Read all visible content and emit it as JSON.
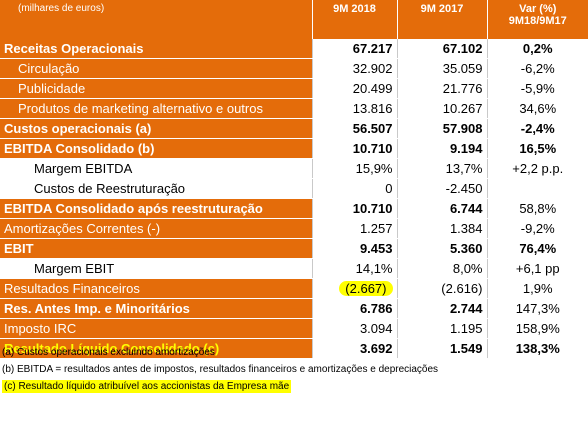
{
  "header": {
    "units": "(milhares de euros)",
    "col1": "9M 2018",
    "col2": "9M 2017",
    "col3_line1": "Var (%)",
    "col3_line2": "9M18/9M17"
  },
  "rows": [
    {
      "label": "Receitas Operacionais",
      "v1": "67.217",
      "v2": "67.102",
      "v3": "0,2%"
    },
    {
      "label": "Circulação",
      "v1": "32.902",
      "v2": "35.059",
      "v3": "-6,2%"
    },
    {
      "label": "Publicidade",
      "v1": "20.499",
      "v2": "21.776",
      "v3": "-5,9%"
    },
    {
      "label": "Produtos de marketing alternativo e outros",
      "v1": "13.816",
      "v2": "10.267",
      "v3": "34,6%"
    },
    {
      "label": "Custos operacionais (a)",
      "v1": "56.507",
      "v2": "57.908",
      "v3": "-2,4%"
    },
    {
      "label": "EBITDA Consolidado (b)",
      "v1": "10.710",
      "v2": "9.194",
      "v3": "16,5%"
    },
    {
      "label": "Margem EBITDA",
      "v1": "15,9%",
      "v2": "13,7%",
      "v3": "+2,2 p.p."
    },
    {
      "label": "Custos de Reestruturação",
      "v1": "0",
      "v2": "-2.450",
      "v3": ""
    },
    {
      "label": "EBITDA Consolidado após reestruturação",
      "v1": "10.710",
      "v2": "6.744",
      "v3": "58,8%"
    },
    {
      "label": "Amortizações Correntes (-)",
      "v1": "1.257",
      "v2": "1.384",
      "v3": "-9,2%"
    },
    {
      "label": "EBIT",
      "v1": "9.453",
      "v2": "5.360",
      "v3": "76,4%"
    },
    {
      "label": "Margem EBIT",
      "v1": "14,1%",
      "v2": "8,0%",
      "v3": "+6,1 pp"
    },
    {
      "label": "Resultados Financeiros",
      "v1": "(2.667)",
      "v2": "(2.616)",
      "v3": "1,9%"
    },
    {
      "label": "Res. Antes Imp. e Minoritários",
      "v1": "6.786",
      "v2": "2.744",
      "v3": "147,3%"
    },
    {
      "label": "Imposto IRC",
      "v1": "3.094",
      "v2": "1.195",
      "v3": "158,9%"
    },
    {
      "label": "Resultado Líquido Consolidado (c)",
      "v1": "3.692",
      "v2": "1.549",
      "v3": "138,3%"
    }
  ],
  "notes": [
    "(a) Custos operacionais excluindo amortizações",
    "(b) EBITDA = resultados antes de impostos, resultados financeiros e amortizações e depreciações",
    "(c) Resultado líquido atribuível aos accionistas da Empresa mãe"
  ],
  "colors": {
    "accent": "#e46c0a",
    "highlight": "#ffff00"
  }
}
